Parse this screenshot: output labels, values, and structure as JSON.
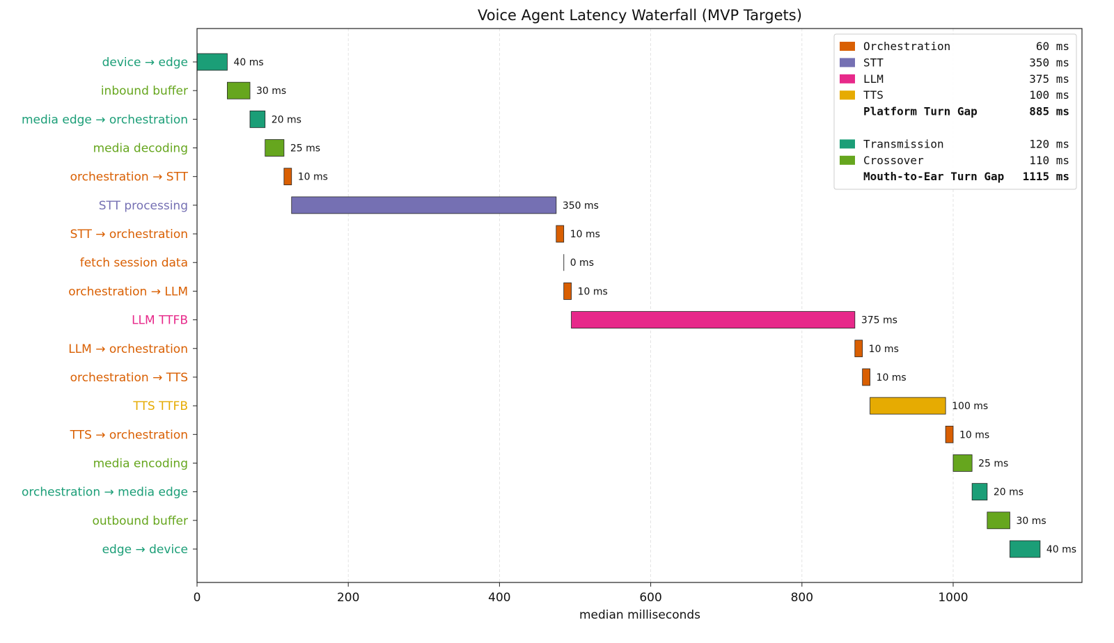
{
  "chart_data": {
    "type": "bar",
    "orientation": "horizontal-waterfall",
    "title": "Voice Agent Latency Waterfall (MVP Targets)",
    "xlabel": "median milliseconds",
    "ylabel": "",
    "xlim": [
      0,
      1170
    ],
    "xticks": [
      0,
      200,
      400,
      600,
      800,
      1000
    ],
    "grid": "vertical dashed",
    "legend_placement": "top-right",
    "colors": {
      "Transmission": "#1b9e77",
      "Crossover": "#66a61e",
      "Orchestration": "#d95f02",
      "STT": "#7570b3",
      "LLM": "#e7298a",
      "TTS": "#e6ab02",
      "Zero": "#555555"
    },
    "steps": [
      {
        "label": "device → edge",
        "start": 0,
        "duration": 40,
        "category": "Transmission",
        "value_label": "40 ms"
      },
      {
        "label": "inbound buffer",
        "start": 40,
        "duration": 30,
        "category": "Crossover",
        "value_label": "30 ms"
      },
      {
        "label": "media edge → orchestration",
        "start": 70,
        "duration": 20,
        "category": "Transmission",
        "value_label": "20 ms"
      },
      {
        "label": "media decoding",
        "start": 90,
        "duration": 25,
        "category": "Crossover",
        "value_label": "25 ms"
      },
      {
        "label": "orchestration → STT",
        "start": 115,
        "duration": 10,
        "category": "Orchestration",
        "value_label": "10 ms"
      },
      {
        "label": "STT processing",
        "start": 125,
        "duration": 350,
        "category": "STT",
        "value_label": "350 ms"
      },
      {
        "label": "STT → orchestration",
        "start": 475,
        "duration": 10,
        "category": "Orchestration",
        "value_label": "10 ms"
      },
      {
        "label": "fetch session data",
        "start": 485,
        "duration": 0,
        "category": "Orchestration",
        "value_label": "0 ms"
      },
      {
        "label": "orchestration → LLM",
        "start": 485,
        "duration": 10,
        "category": "Orchestration",
        "value_label": "10 ms"
      },
      {
        "label": "LLM TTFB",
        "start": 495,
        "duration": 375,
        "category": "LLM",
        "value_label": "375 ms"
      },
      {
        "label": "LLM → orchestration",
        "start": 870,
        "duration": 10,
        "category": "Orchestration",
        "value_label": "10 ms"
      },
      {
        "label": "orchestration → TTS",
        "start": 880,
        "duration": 10,
        "category": "Orchestration",
        "value_label": "10 ms"
      },
      {
        "label": "TTS TTFB",
        "start": 890,
        "duration": 100,
        "category": "TTS",
        "value_label": "100 ms"
      },
      {
        "label": "TTS → orchestration",
        "start": 990,
        "duration": 10,
        "category": "Orchestration",
        "value_label": "10 ms"
      },
      {
        "label": "media encoding",
        "start": 1000,
        "duration": 25,
        "category": "Crossover",
        "value_label": "25 ms"
      },
      {
        "label": "orchestration → media edge",
        "start": 1025,
        "duration": 20,
        "category": "Transmission",
        "value_label": "20 ms"
      },
      {
        "label": "outbound buffer",
        "start": 1045,
        "duration": 30,
        "category": "Crossover",
        "value_label": "30 ms"
      },
      {
        "label": "edge → device",
        "start": 1075,
        "duration": 40,
        "category": "Transmission",
        "value_label": "40 ms"
      }
    ],
    "legend": [
      {
        "name": "Orchestration",
        "value": "60 ms",
        "swatch": true,
        "bold": false
      },
      {
        "name": "STT",
        "value": "350 ms",
        "swatch": true,
        "bold": false
      },
      {
        "name": "LLM",
        "value": "375 ms",
        "swatch": true,
        "bold": false
      },
      {
        "name": "TTS",
        "value": "100 ms",
        "swatch": true,
        "bold": false
      },
      {
        "name": "Platform Turn Gap",
        "value": "885 ms",
        "swatch": false,
        "bold": true
      },
      {
        "name": "",
        "value": "",
        "swatch": false,
        "bold": false
      },
      {
        "name": "Transmission",
        "value": "120 ms",
        "swatch": true,
        "bold": false
      },
      {
        "name": "Crossover",
        "value": "110 ms",
        "swatch": true,
        "bold": false
      },
      {
        "name": "Mouth-to-Ear Turn Gap",
        "value": "1115 ms",
        "swatch": false,
        "bold": true
      }
    ]
  }
}
